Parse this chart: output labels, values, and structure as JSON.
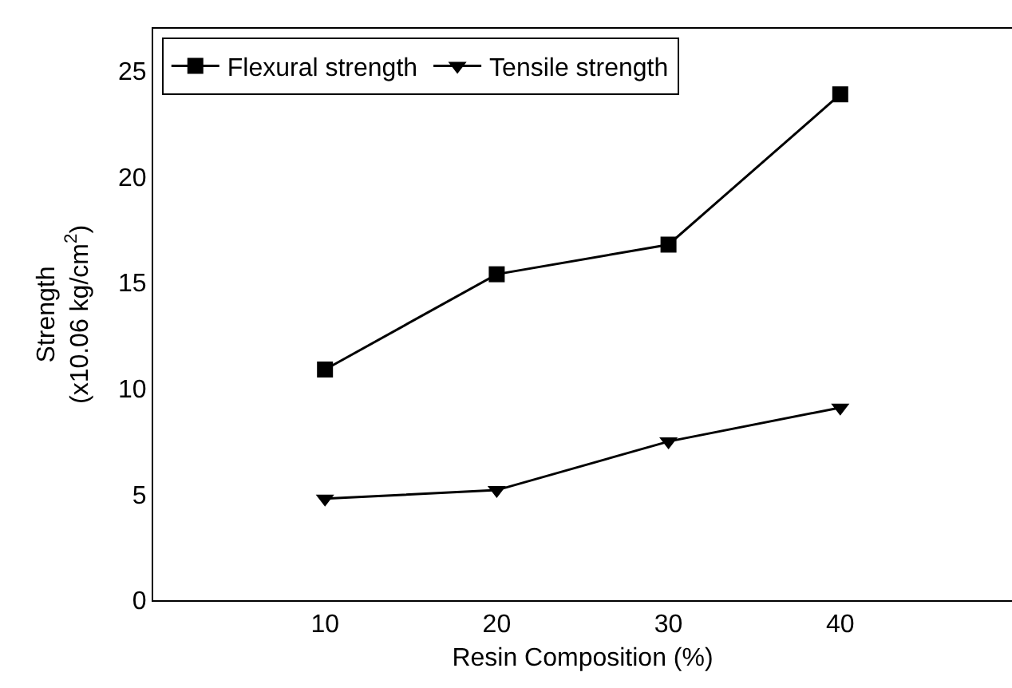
{
  "chart_data": {
    "type": "line",
    "xlabel": "Resin Composition (%)",
    "ylabel": "Strength\n(x10.06 kg/cm$^{2}$)",
    "x": [
      10,
      20,
      30,
      40
    ],
    "series": [
      {
        "name": "Flexural strength",
        "color": "#000000",
        "marker": "square",
        "values": [
          10.9,
          15.4,
          16.8,
          23.9
        ]
      },
      {
        "name": "Tensile strength",
        "color": "#000000",
        "marker": "triangle",
        "values": [
          4.8,
          5.2,
          7.5,
          9.1
        ]
      }
    ],
    "xlim": [
      0,
      50
    ],
    "xticks": [
      10,
      20,
      30,
      40
    ],
    "ylim": [
      0,
      27
    ],
    "yticks": [
      0,
      5,
      10,
      15,
      20,
      25
    ],
    "grid": false,
    "legend": "top left",
    "line_style": "solid"
  }
}
